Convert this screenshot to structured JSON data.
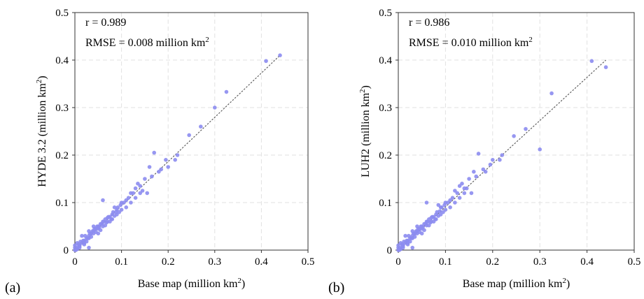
{
  "chart_data": [
    {
      "type": "scatter",
      "panel_label": "(a)",
      "xlabel": "Base map (million km²)",
      "ylabel": "HYDE 3.2 (million km²)",
      "xlim": [
        0,
        0.5
      ],
      "ylim": [
        0,
        0.5
      ],
      "xticks": [
        "0",
        "0.1",
        "0.2",
        "0.3",
        "0.4",
        "0.5"
      ],
      "yticks": [
        "0",
        "0.1",
        "0.2",
        "0.3",
        "0.4",
        "0.5"
      ],
      "grid": true,
      "annotations": [
        "r = 0.989",
        "RMSE = 0.008 million km²"
      ],
      "fit_line": {
        "x": [
          0,
          0.44
        ],
        "y": [
          0,
          0.41
        ]
      },
      "point_color": "#8c8cf0",
      "line_color": "#555555",
      "x": [
        0.44,
        0.41,
        0.325,
        0.3,
        0.27,
        0.245,
        0.22,
        0.215,
        0.2,
        0.17,
        0.18,
        0.16,
        0.15,
        0.14,
        0.155,
        0.13,
        0.12,
        0.11,
        0.1,
        0.09,
        0.085,
        0.08,
        0.075,
        0.07,
        0.065,
        0.06,
        0.06,
        0.055,
        0.05,
        0.05,
        0.045,
        0.04,
        0.04,
        0.035,
        0.03,
        0.03,
        0.025,
        0.02,
        0.02,
        0.015,
        0.01,
        0.01,
        0.005,
        0.005,
        0.0,
        0.0,
        0.0,
        0.002,
        0.008,
        0.012,
        0.018,
        0.022,
        0.028,
        0.032,
        0.038,
        0.042,
        0.048,
        0.052,
        0.058,
        0.062,
        0.068,
        0.072,
        0.078,
        0.082,
        0.088,
        0.092,
        0.098,
        0.105,
        0.115,
        0.125,
        0.135,
        0.145,
        0.165,
        0.185,
        0.195,
        0.06,
        0.09,
        0.11,
        0.03,
        0.015,
        0.04,
        0.07,
        0.1,
        0.12,
        0.05,
        0.08,
        0.025,
        0.035,
        0.045,
        0.055,
        0.065,
        0.075,
        0.085,
        0.095,
        0.01,
        0.02,
        0.005,
        0.03,
        0.13,
        0.14
      ],
      "y": [
        0.41,
        0.398,
        0.333,
        0.3,
        0.26,
        0.242,
        0.2,
        0.19,
        0.175,
        0.205,
        0.165,
        0.175,
        0.15,
        0.135,
        0.12,
        0.13,
        0.12,
        0.105,
        0.1,
        0.085,
        0.09,
        0.075,
        0.07,
        0.068,
        0.065,
        0.06,
        0.05,
        0.055,
        0.05,
        0.045,
        0.045,
        0.04,
        0.035,
        0.035,
        0.03,
        0.025,
        0.025,
        0.02,
        0.015,
        0.015,
        0.01,
        0.008,
        0.005,
        0.002,
        0.0,
        0.005,
        0.01,
        0.0,
        0.012,
        0.018,
        0.02,
        0.03,
        0.025,
        0.035,
        0.04,
        0.045,
        0.05,
        0.048,
        0.055,
        0.06,
        0.058,
        0.07,
        0.065,
        0.08,
        0.08,
        0.09,
        0.095,
        0.1,
        0.11,
        0.12,
        0.14,
        0.125,
        0.155,
        0.17,
        0.19,
        0.105,
        0.075,
        0.09,
        0.04,
        0.03,
        0.05,
        0.06,
        0.085,
        0.1,
        0.035,
        0.065,
        0.018,
        0.028,
        0.038,
        0.042,
        0.052,
        0.06,
        0.072,
        0.08,
        0.005,
        0.012,
        0.015,
        0.005,
        0.11,
        0.12
      ]
    },
    {
      "type": "scatter",
      "panel_label": "(b)",
      "xlabel": "Base map (million km²)",
      "ylabel": "LUH2 (million km²)",
      "xlim": [
        0,
        0.5
      ],
      "ylim": [
        0,
        0.5
      ],
      "xticks": [
        "0",
        "0.1",
        "0.2",
        "0.3",
        "0.4",
        "0.5"
      ],
      "yticks": [
        "0",
        "0.1",
        "0.2",
        "0.3",
        "0.4",
        "0.5"
      ],
      "grid": true,
      "annotations": [
        "r = 0.986",
        "RMSE = 0.010 million km²"
      ],
      "fit_line": {
        "x": [
          0,
          0.44
        ],
        "y": [
          0,
          0.4
        ]
      },
      "point_color": "#8c8cf0",
      "line_color": "#555555",
      "x": [
        0.44,
        0.41,
        0.325,
        0.3,
        0.27,
        0.245,
        0.22,
        0.215,
        0.2,
        0.17,
        0.18,
        0.16,
        0.15,
        0.14,
        0.155,
        0.13,
        0.12,
        0.11,
        0.1,
        0.09,
        0.085,
        0.08,
        0.075,
        0.07,
        0.065,
        0.06,
        0.06,
        0.055,
        0.05,
        0.05,
        0.045,
        0.04,
        0.04,
        0.035,
        0.03,
        0.03,
        0.025,
        0.02,
        0.02,
        0.015,
        0.01,
        0.01,
        0.005,
        0.005,
        0.0,
        0.0,
        0.0,
        0.002,
        0.008,
        0.012,
        0.018,
        0.022,
        0.028,
        0.032,
        0.038,
        0.042,
        0.048,
        0.052,
        0.058,
        0.062,
        0.068,
        0.072,
        0.078,
        0.082,
        0.088,
        0.092,
        0.098,
        0.105,
        0.115,
        0.125,
        0.135,
        0.145,
        0.165,
        0.185,
        0.195,
        0.06,
        0.09,
        0.11,
        0.03,
        0.015,
        0.04,
        0.07,
        0.1,
        0.12,
        0.05,
        0.08,
        0.025,
        0.035,
        0.045,
        0.055,
        0.065,
        0.075,
        0.085,
        0.095,
        0.01,
        0.02,
        0.005,
        0.03,
        0.13,
        0.14
      ],
      "y": [
        0.385,
        0.398,
        0.33,
        0.212,
        0.255,
        0.24,
        0.2,
        0.19,
        0.19,
        0.203,
        0.17,
        0.165,
        0.15,
        0.13,
        0.12,
        0.135,
        0.125,
        0.105,
        0.1,
        0.09,
        0.095,
        0.075,
        0.07,
        0.068,
        0.065,
        0.06,
        0.052,
        0.055,
        0.05,
        0.045,
        0.045,
        0.04,
        0.035,
        0.035,
        0.03,
        0.025,
        0.025,
        0.02,
        0.015,
        0.015,
        0.01,
        0.008,
        0.005,
        0.002,
        0.0,
        0.005,
        0.01,
        0.0,
        0.012,
        0.018,
        0.02,
        0.03,
        0.025,
        0.035,
        0.04,
        0.045,
        0.05,
        0.048,
        0.055,
        0.06,
        0.058,
        0.07,
        0.065,
        0.08,
        0.082,
        0.09,
        0.095,
        0.1,
        0.11,
        0.12,
        0.14,
        0.13,
        0.155,
        0.165,
        0.18,
        0.1,
        0.075,
        0.09,
        0.04,
        0.03,
        0.05,
        0.06,
        0.085,
        0.1,
        0.035,
        0.065,
        0.018,
        0.028,
        0.038,
        0.042,
        0.052,
        0.06,
        0.072,
        0.08,
        0.005,
        0.012,
        0.015,
        0.005,
        0.11,
        0.12
      ]
    }
  ]
}
